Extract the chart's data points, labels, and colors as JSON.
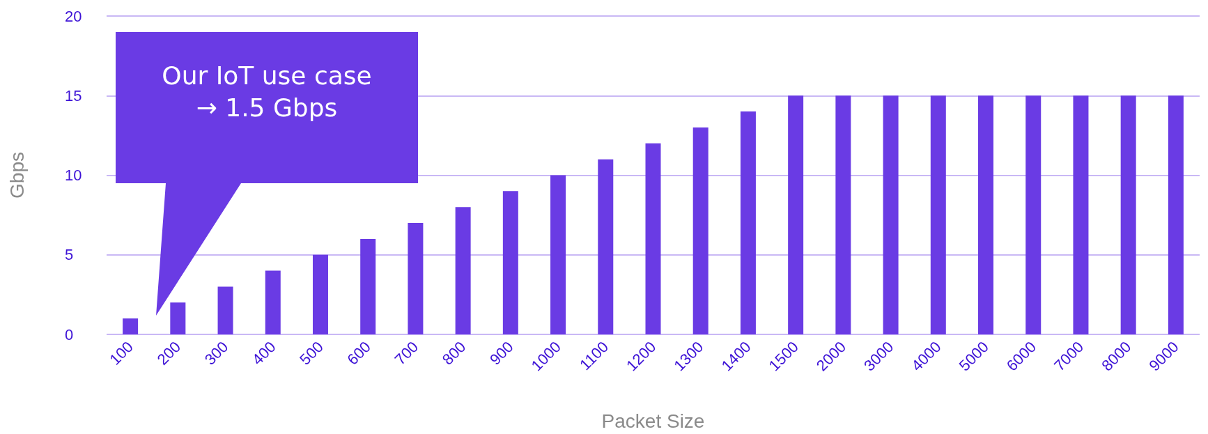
{
  "chart_data": {
    "type": "bar",
    "xlabel": "Packet Size",
    "ylabel": "Gbps",
    "categories": [
      "100",
      "200",
      "300",
      "400",
      "500",
      "600",
      "700",
      "800",
      "900",
      "1000",
      "1100",
      "1200",
      "1300",
      "1400",
      "1500",
      "2000",
      "3000",
      "4000",
      "5000",
      "6000",
      "7000",
      "8000",
      "9000"
    ],
    "values": [
      1,
      2,
      3,
      4,
      5,
      6,
      7,
      8,
      9,
      10,
      11,
      12,
      13,
      14,
      15,
      15,
      15,
      15,
      15,
      15,
      15,
      15,
      15
    ],
    "color": "#6a3be4",
    "ylim": [
      0,
      20
    ],
    "yticks": [
      0,
      5,
      10,
      15,
      20
    ],
    "grid": "y",
    "annotations": [
      "Our IoT use case\n→ 1.5 Gbps"
    ]
  }
}
